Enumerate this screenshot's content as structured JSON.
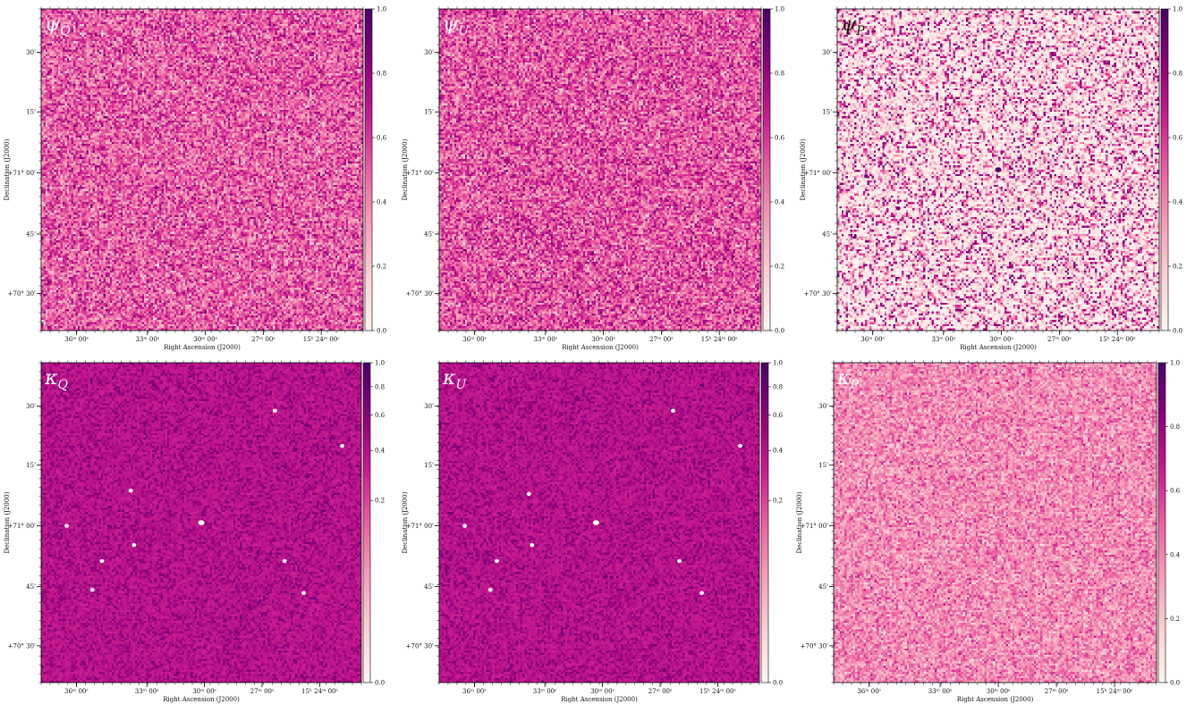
{
  "colors": {
    "cmap": [
      "#fff5ef",
      "#fcd0d4",
      "#f89db8",
      "#ea5fa1",
      "#c81a8f",
      "#8c0179",
      "#4a0169"
    ],
    "label_light": "#ffffff",
    "label_dark": "#111111",
    "source": "#ffffff"
  },
  "chart_data": [
    {
      "type": "heatmap",
      "label": "ψ",
      "label_sub": "Q",
      "label_color": "light",
      "xlabel": "Right Ascension (J2000)",
      "ylabel": "Declination (J2000)",
      "xticks": [
        "36ᵐ 00ˢ",
        "33ᵐ 00ˢ",
        "30ᵐ 00ˢ",
        "27ᵐ 00ˢ",
        "15ʰ 24ᵐ 00ˢ"
      ],
      "yticks": [
        "30'",
        "15'",
        "+71° 00'",
        "45'",
        "+70° 30'"
      ],
      "colorbar_ticks": [
        "0.0",
        "0.2",
        "0.4",
        "0.6",
        "0.8",
        "1.0"
      ],
      "colorbar_values": [
        0,
        0.2,
        0.4,
        0.6,
        0.8,
        1.0
      ],
      "colorbar_scale": "linear",
      "texture": {
        "mean": 0.5,
        "spread": 0.28,
        "bias": 1.0
      },
      "sources": []
    },
    {
      "type": "heatmap",
      "label": "ψ",
      "label_sub": "U",
      "label_color": "light",
      "xlabel": "Right Ascension (J2000)",
      "ylabel": "Declination (J2000)",
      "xticks": [
        "36ᵐ 00ˢ",
        "33ᵐ 00ˢ",
        "30ᵐ 00ˢ",
        "27ᵐ 00ˢ",
        "15ʰ 24ᵐ 00ˢ"
      ],
      "yticks": [
        "30'",
        "15'",
        "+71° 00'",
        "45'",
        "+70° 30'"
      ],
      "colorbar_ticks": [
        "0.0",
        "0.2",
        "0.4",
        "0.6",
        "0.8",
        "1.0"
      ],
      "colorbar_values": [
        0,
        0.2,
        0.4,
        0.6,
        0.8,
        1.0
      ],
      "colorbar_scale": "linear",
      "texture": {
        "mean": 0.52,
        "spread": 0.28,
        "bias": 1.0
      },
      "sources": []
    },
    {
      "type": "heatmap",
      "label": "ψ",
      "label_sub": "P",
      "label_color": "dark",
      "xlabel": "Right Ascension (J2000)",
      "ylabel": "Declination (J2000)",
      "xticks": [
        "36ᵐ 00ˢ",
        "33ᵐ 00ˢ",
        "30ᵐ 00ˢ",
        "27ᵐ 00ˢ",
        "15ʰ 24ᵐ 00ˢ"
      ],
      "yticks": [
        "30'",
        "15'",
        "+71° 00'",
        "45'",
        "+70° 30'"
      ],
      "colorbar_ticks": [
        "0.0",
        "0.2",
        "0.4",
        "0.6",
        "0.8",
        "1.0"
      ],
      "colorbar_values": [
        0,
        0.2,
        0.4,
        0.6,
        0.8,
        1.0
      ],
      "colorbar_scale": "linear",
      "texture": {
        "mean": 0.04,
        "spread": 0.1,
        "bias": 3.0
      },
      "sources": [
        {
          "ra_frac": 0.5,
          "dec_frac": 0.5,
          "value": 1.0
        },
        {
          "ra_frac": 0.09,
          "dec_frac": 0.52,
          "value": 0.9
        },
        {
          "ra_frac": 0.19,
          "dec_frac": 0.62,
          "value": 0.85
        },
        {
          "ra_frac": 0.3,
          "dec_frac": 0.57,
          "value": 0.7
        },
        {
          "ra_frac": 0.27,
          "dec_frac": 0.41,
          "value": 0.7
        },
        {
          "ra_frac": 0.16,
          "dec_frac": 0.71,
          "value": 0.7
        },
        {
          "ra_frac": 0.75,
          "dec_frac": 0.61,
          "value": 0.7
        },
        {
          "ra_frac": 0.82,
          "dec_frac": 0.72,
          "value": 0.7
        },
        {
          "ra_frac": 0.94,
          "dec_frac": 0.26,
          "value": 0.75
        }
      ]
    },
    {
      "type": "heatmap",
      "label": "κ",
      "label_sub": "Q",
      "label_color": "light",
      "xlabel": "Right Ascension (J2000)",
      "ylabel": "Declination (J2000)",
      "xticks": [
        "36ᵐ 00ˢ",
        "33ᵐ 00ˢ",
        "30ᵐ 00ˢ",
        "27ᵐ 00ˢ",
        "15ʰ 24ᵐ 00ˢ"
      ],
      "yticks": [
        "30'",
        "15'",
        "+71° 00'",
        "45'",
        "+70° 30'"
      ],
      "colorbar_ticks": [
        "0.0",
        "0.2",
        "0.4",
        "0.6",
        "0.8",
        "1.0"
      ],
      "colorbar_values": [
        0,
        0.2,
        0.4,
        0.6,
        0.8,
        1.0
      ],
      "colorbar_scale": "power",
      "texture": {
        "mean": 0.75,
        "spread": 0.25,
        "bias": 0.3
      },
      "sources": [
        {
          "ra_frac": 0.5,
          "dec_frac": 0.5,
          "value": 0.0
        },
        {
          "ra_frac": 0.08,
          "dec_frac": 0.51,
          "value": 0.0
        },
        {
          "ra_frac": 0.28,
          "dec_frac": 0.4,
          "value": 0.0
        },
        {
          "ra_frac": 0.29,
          "dec_frac": 0.57,
          "value": 0.0
        },
        {
          "ra_frac": 0.19,
          "dec_frac": 0.62,
          "value": 0.0
        },
        {
          "ra_frac": 0.16,
          "dec_frac": 0.71,
          "value": 0.0
        },
        {
          "ra_frac": 0.73,
          "dec_frac": 0.15,
          "value": 0.0
        },
        {
          "ra_frac": 0.94,
          "dec_frac": 0.26,
          "value": 0.0
        },
        {
          "ra_frac": 0.76,
          "dec_frac": 0.62,
          "value": 0.0
        },
        {
          "ra_frac": 0.82,
          "dec_frac": 0.72,
          "value": 0.0
        }
      ]
    },
    {
      "type": "heatmap",
      "label": "κ",
      "label_sub": "U",
      "label_color": "light",
      "xlabel": "Right Ascension (J2000)",
      "ylabel": "Declination (J2000)",
      "xticks": [
        "36ᵐ 00ˢ",
        "33ᵐ 00ˢ",
        "30ᵐ 00ˢ",
        "27ᵐ 00ˢ",
        "15ʰ 24ᵐ 00ˢ"
      ],
      "yticks": [
        "30'",
        "15'",
        "+71° 00'",
        "45'",
        "+70° 30'"
      ],
      "colorbar_ticks": [
        "0.0",
        "0.2",
        "0.4",
        "0.6",
        "0.8",
        "1.0"
      ],
      "colorbar_values": [
        0,
        0.2,
        0.4,
        0.6,
        0.8,
        1.0
      ],
      "colorbar_scale": "power",
      "texture": {
        "mean": 0.75,
        "spread": 0.25,
        "bias": 0.3
      },
      "sources": [
        {
          "ra_frac": 0.49,
          "dec_frac": 0.5,
          "value": 0.0
        },
        {
          "ra_frac": 0.08,
          "dec_frac": 0.51,
          "value": 0.0
        },
        {
          "ra_frac": 0.29,
          "dec_frac": 0.57,
          "value": 0.0
        },
        {
          "ra_frac": 0.28,
          "dec_frac": 0.41,
          "value": 0.0
        },
        {
          "ra_frac": 0.18,
          "dec_frac": 0.62,
          "value": 0.0
        },
        {
          "ra_frac": 0.16,
          "dec_frac": 0.71,
          "value": 0.0
        },
        {
          "ra_frac": 0.73,
          "dec_frac": 0.15,
          "value": 0.0
        },
        {
          "ra_frac": 0.94,
          "dec_frac": 0.26,
          "value": 0.0
        },
        {
          "ra_frac": 0.75,
          "dec_frac": 0.62,
          "value": 0.0
        },
        {
          "ra_frac": 0.82,
          "dec_frac": 0.72,
          "value": 0.0
        }
      ]
    },
    {
      "type": "heatmap",
      "label": "κ",
      "label_sub": "P",
      "label_color": "light",
      "xlabel": "Right Ascension (J2000)",
      "ylabel": "Declination (J2000)",
      "xticks": [
        "36ᵐ 00ˢ",
        "33ᵐ 00ˢ",
        "30ᵐ 00ˢ",
        "27ᵐ 00ˢ",
        "15ʰ 24ᵐ 00ˢ"
      ],
      "yticks": [
        "30'",
        "15'",
        "+71° 00'",
        "45'",
        "+70° 30'"
      ],
      "colorbar_ticks": [
        "0.0",
        "0.2",
        "0.4",
        "0.6",
        "0.8",
        "1.0"
      ],
      "colorbar_values": [
        0,
        0.2,
        0.4,
        0.6,
        0.8,
        1.0
      ],
      "colorbar_scale": "linear",
      "texture": {
        "mean": 0.38,
        "spread": 0.22,
        "bias": 1.0
      },
      "sources": []
    }
  ]
}
